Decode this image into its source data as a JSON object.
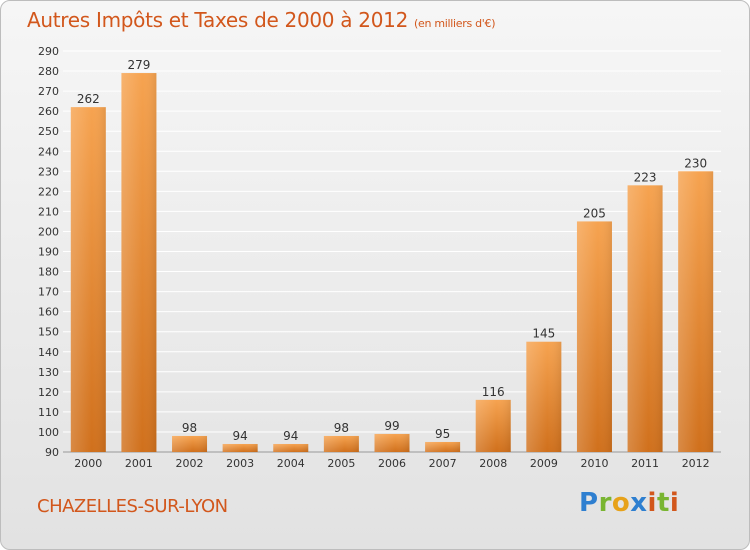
{
  "title": {
    "main": "Autres Impôts et Taxes de 2000 à 2012",
    "unit": "(en milliers d'€)"
  },
  "commune": "CHAZELLES-SUR-LYON",
  "logo": "Proxiti",
  "colors": {
    "bar_light": "#f6a350",
    "bar_dark": "#d0701c",
    "title": "#d2571c",
    "grid": "#ffffff"
  },
  "chart_data": {
    "type": "bar",
    "title": "Autres Impôts et Taxes de 2000 à 2012",
    "subtitle": "(en milliers d'€)",
    "categories": [
      "2000",
      "2001",
      "2002",
      "2003",
      "2004",
      "2005",
      "2006",
      "2007",
      "2008",
      "2009",
      "2010",
      "2011",
      "2012"
    ],
    "values": [
      262,
      279,
      98,
      94,
      94,
      98,
      99,
      95,
      116,
      145,
      205,
      223,
      230
    ],
    "ylim": [
      90,
      290
    ],
    "yticks": [
      90,
      100,
      110,
      120,
      130,
      140,
      150,
      160,
      170,
      180,
      190,
      200,
      210,
      220,
      230,
      240,
      250,
      260,
      270,
      280,
      290
    ],
    "grid": true,
    "legend": "none"
  }
}
